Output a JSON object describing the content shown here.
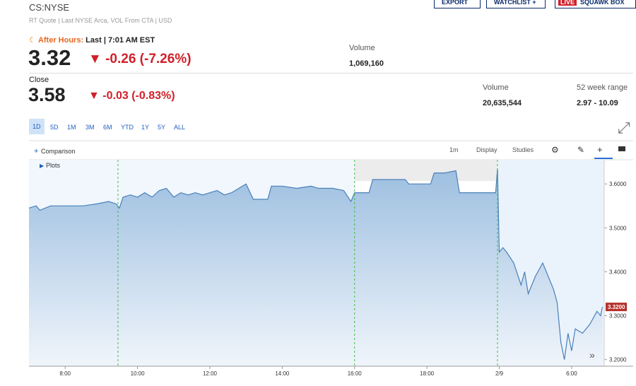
{
  "header": {
    "symbol": "CS:NYSE",
    "subtitle": "RT Quote | Last NYSE Arca, VOL From CTA | USD",
    "buttons": [
      "EXPORT",
      "WATCHLIST",
      "LIVE",
      "SQUAWK BOX"
    ]
  },
  "after_hours": {
    "label": "After Hours:",
    "time": "Last | 7:01 AM EST",
    "price": "3.32",
    "change": "-0.26 (-7.26%)",
    "volume_label": "Volume",
    "volume": "1,069,160"
  },
  "close": {
    "label": "Close",
    "price": "3.58",
    "change": "-0.03 (-0.83%)",
    "volume_label": "Volume",
    "volume": "20,635,544",
    "range_label": "52 week range",
    "range": "2.97 - 10.09"
  },
  "ranges": [
    "1D",
    "5D",
    "1M",
    "3M",
    "6M",
    "YTD",
    "1Y",
    "5Y",
    "ALL"
  ],
  "toolbar": {
    "comparison": "Comparison",
    "interval": "1m",
    "display": "Display",
    "studies": "Studies",
    "plots": "Plots"
  },
  "chart_data": {
    "type": "line",
    "color": "#4a80b8",
    "x": [
      7.0,
      7.2,
      7.3,
      7.6,
      8.0,
      8.5,
      8.9,
      9.2,
      9.4,
      9.5,
      9.6,
      9.8,
      10.0,
      10.2,
      10.4,
      10.6,
      10.8,
      11.0,
      11.2,
      11.4,
      11.6,
      11.8,
      12.0,
      12.2,
      12.4,
      12.6,
      12.8,
      13.0,
      13.2,
      13.6,
      13.7,
      14.0,
      14.4,
      14.8,
      15.0,
      15.4,
      15.7,
      15.9,
      16.0,
      16.4,
      16.5,
      17.4,
      17.5,
      18.1,
      18.2,
      18.5,
      18.8,
      18.9,
      19.5,
      19.9,
      19.95,
      20.0,
      20.1,
      20.2,
      20.4,
      20.6,
      20.7,
      20.8,
      21.0,
      21.2,
      21.3,
      21.4,
      21.5,
      21.6,
      21.7,
      21.8,
      21.9,
      22.0,
      22.1,
      22.3,
      22.5,
      22.7,
      22.8,
      22.85
    ],
    "values": [
      3.545,
      3.55,
      3.54,
      3.55,
      3.55,
      3.55,
      3.555,
      3.56,
      3.555,
      3.545,
      3.57,
      3.575,
      3.57,
      3.58,
      3.57,
      3.585,
      3.59,
      3.57,
      3.58,
      3.575,
      3.58,
      3.575,
      3.58,
      3.585,
      3.575,
      3.58,
      3.59,
      3.6,
      3.565,
      3.565,
      3.595,
      3.595,
      3.59,
      3.595,
      3.59,
      3.59,
      3.585,
      3.56,
      3.58,
      3.58,
      3.61,
      3.61,
      3.6,
      3.6,
      3.625,
      3.625,
      3.63,
      3.58,
      3.58,
      3.58,
      3.635,
      3.445,
      3.455,
      3.445,
      3.42,
      3.37,
      3.4,
      3.35,
      3.39,
      3.42,
      3.4,
      3.38,
      3.36,
      3.33,
      3.24,
      3.2,
      3.26,
      3.22,
      3.27,
      3.26,
      3.28,
      3.31,
      3.3,
      3.32
    ],
    "xlim": [
      7.0,
      22.9
    ],
    "xticks": [
      {
        "value": 8,
        "label": "8:00"
      },
      {
        "value": 10,
        "label": "10:00"
      },
      {
        "value": 12,
        "label": "12:00"
      },
      {
        "value": 14,
        "label": "14:00"
      },
      {
        "value": 16,
        "label": "16:00"
      },
      {
        "value": 18,
        "label": "18:00"
      },
      {
        "value": 20,
        "label": "2/9"
      },
      {
        "value": 22,
        "label": "6:00"
      }
    ],
    "ylim": [
      3.185,
      3.655
    ],
    "yticks": [
      {
        "value": 3.6,
        "label": "3.6000"
      },
      {
        "value": 3.5,
        "label": "3.5000"
      },
      {
        "value": 3.4,
        "label": "3.4000"
      },
      {
        "value": 3.3,
        "label": "3.3000"
      },
      {
        "value": 3.2,
        "label": "3.2000"
      }
    ],
    "last_price": {
      "value": 3.32,
      "label": "3.3200"
    },
    "session_lines": [
      9.46,
      16.0,
      19.95,
      22.9
    ]
  }
}
